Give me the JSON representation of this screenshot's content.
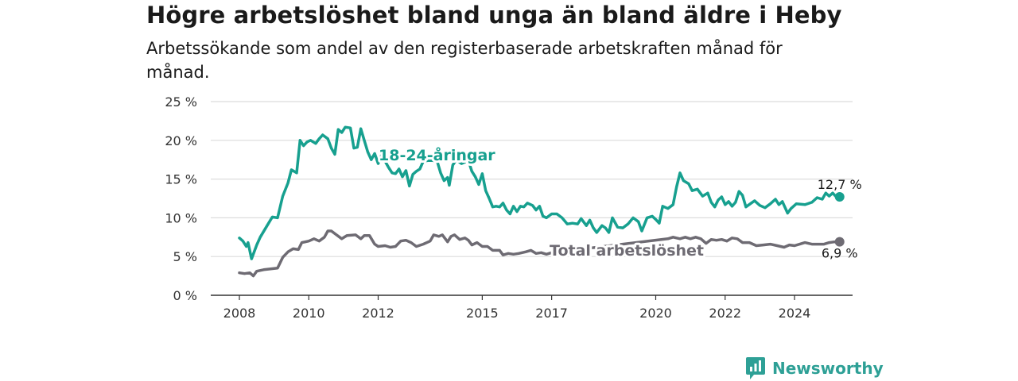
{
  "title": "Högre arbetslöshet bland unga än bland äldre i Heby",
  "subtitle": "Arbetssökande som andel av den registerbaserade arbetskraften månad för månad.",
  "brand": {
    "name": "Newsworthy",
    "logo_icon": "bar-chart-speech-bubble-icon"
  },
  "colors": {
    "youth": "#17a08f",
    "total": "#6e6b73",
    "brand": "#2ea096"
  },
  "chart_data": {
    "type": "line",
    "ylim": [
      0,
      25
    ],
    "xlim": [
      2007.7,
      2025.6
    ],
    "y_ticks": [
      0,
      5,
      10,
      15,
      20,
      25
    ],
    "y_tick_labels": [
      "0 %",
      "5 %",
      "10 %",
      "15 %",
      "20 %",
      "25 %"
    ],
    "x_ticks": [
      2008,
      2010,
      2012,
      2015,
      2017,
      2020,
      2022,
      2024
    ],
    "x_tick_labels": [
      "2008",
      "2010",
      "2012",
      "2015",
      "2017",
      "2020",
      "2022",
      "2024"
    ],
    "grid": true,
    "series": [
      {
        "name": "18-24-åringar",
        "end_label": "12,7 %",
        "points": [
          [
            2008.0,
            7.4
          ],
          [
            2008.1,
            7.0
          ],
          [
            2008.2,
            6.3
          ],
          [
            2008.25,
            6.8
          ],
          [
            2008.35,
            4.7
          ],
          [
            2008.5,
            6.5
          ],
          [
            2008.6,
            7.5
          ],
          [
            2008.8,
            9.0
          ],
          [
            2008.95,
            10.1
          ],
          [
            2009.1,
            10.0
          ],
          [
            2009.25,
            12.8
          ],
          [
            2009.4,
            14.5
          ],
          [
            2009.5,
            16.2
          ],
          [
            2009.65,
            15.8
          ],
          [
            2009.75,
            20.0
          ],
          [
            2009.85,
            19.3
          ],
          [
            2009.95,
            19.8
          ],
          [
            2010.05,
            20.0
          ],
          [
            2010.2,
            19.6
          ],
          [
            2010.3,
            20.2
          ],
          [
            2010.4,
            20.7
          ],
          [
            2010.55,
            20.2
          ],
          [
            2010.65,
            19.0
          ],
          [
            2010.75,
            18.2
          ],
          [
            2010.85,
            21.4
          ],
          [
            2010.95,
            21.0
          ],
          [
            2011.05,
            21.7
          ],
          [
            2011.2,
            21.6
          ],
          [
            2011.3,
            19.0
          ],
          [
            2011.4,
            19.1
          ],
          [
            2011.5,
            21.5
          ],
          [
            2011.6,
            20.0
          ],
          [
            2011.7,
            18.5
          ],
          [
            2011.8,
            17.5
          ],
          [
            2011.9,
            18.3
          ],
          [
            2012.0,
            17.0
          ],
          [
            2012.1,
            18.1
          ],
          [
            2012.2,
            17.3
          ],
          [
            2012.3,
            16.5
          ],
          [
            2012.4,
            15.8
          ],
          [
            2012.5,
            15.7
          ],
          [
            2012.6,
            16.3
          ],
          [
            2012.7,
            15.3
          ],
          [
            2012.8,
            16.1
          ],
          [
            2012.9,
            14.1
          ],
          [
            2013.0,
            15.6
          ],
          [
            2013.1,
            16.0
          ],
          [
            2013.2,
            16.3
          ],
          [
            2013.3,
            17.3
          ],
          [
            2013.45,
            17.4
          ],
          [
            2013.55,
            17.4
          ],
          [
            2013.7,
            17.3
          ],
          [
            2013.8,
            15.8
          ],
          [
            2013.9,
            14.8
          ],
          [
            2014.0,
            15.2
          ],
          [
            2014.05,
            14.2
          ],
          [
            2014.15,
            16.8
          ],
          [
            2014.25,
            17.5
          ],
          [
            2014.4,
            17.0
          ],
          [
            2014.5,
            17.2
          ],
          [
            2014.6,
            17.4
          ],
          [
            2014.7,
            16.0
          ],
          [
            2014.8,
            15.3
          ],
          [
            2014.9,
            14.3
          ],
          [
            2015.0,
            15.7
          ],
          [
            2015.1,
            13.5
          ],
          [
            2015.2,
            12.5
          ],
          [
            2015.3,
            11.4
          ],
          [
            2015.4,
            11.5
          ],
          [
            2015.5,
            11.4
          ],
          [
            2015.6,
            11.9
          ],
          [
            2015.7,
            11.0
          ],
          [
            2015.8,
            10.5
          ],
          [
            2015.9,
            11.5
          ],
          [
            2016.0,
            10.8
          ],
          [
            2016.1,
            11.5
          ],
          [
            2016.2,
            11.4
          ],
          [
            2016.3,
            11.9
          ],
          [
            2016.45,
            11.6
          ],
          [
            2016.55,
            11.0
          ],
          [
            2016.65,
            11.5
          ],
          [
            2016.75,
            10.2
          ],
          [
            2016.85,
            10.0
          ],
          [
            2017.0,
            10.5
          ],
          [
            2017.15,
            10.5
          ],
          [
            2017.3,
            10.0
          ],
          [
            2017.45,
            9.2
          ],
          [
            2017.6,
            9.3
          ],
          [
            2017.75,
            9.2
          ],
          [
            2017.85,
            9.9
          ],
          [
            2018.0,
            9.0
          ],
          [
            2018.1,
            9.7
          ],
          [
            2018.2,
            8.7
          ],
          [
            2018.3,
            8.1
          ],
          [
            2018.45,
            9.0
          ],
          [
            2018.55,
            8.7
          ],
          [
            2018.65,
            8.1
          ],
          [
            2018.75,
            10.0
          ],
          [
            2018.9,
            8.8
          ],
          [
            2019.05,
            8.7
          ],
          [
            2019.2,
            9.2
          ],
          [
            2019.35,
            10.0
          ],
          [
            2019.5,
            9.5
          ],
          [
            2019.6,
            8.3
          ],
          [
            2019.75,
            10.0
          ],
          [
            2019.9,
            10.2
          ],
          [
            2020.0,
            9.8
          ],
          [
            2020.1,
            9.3
          ],
          [
            2020.2,
            11.5
          ],
          [
            2020.35,
            11.2
          ],
          [
            2020.5,
            11.7
          ],
          [
            2020.6,
            14.0
          ],
          [
            2020.7,
            15.8
          ],
          [
            2020.8,
            14.8
          ],
          [
            2020.95,
            14.4
          ],
          [
            2021.05,
            13.5
          ],
          [
            2021.2,
            13.7
          ],
          [
            2021.35,
            12.8
          ],
          [
            2021.5,
            13.2
          ],
          [
            2021.6,
            12.0
          ],
          [
            2021.7,
            11.4
          ],
          [
            2021.8,
            12.3
          ],
          [
            2021.9,
            12.7
          ],
          [
            2022.0,
            11.7
          ],
          [
            2022.1,
            12.1
          ],
          [
            2022.2,
            11.5
          ],
          [
            2022.3,
            12.0
          ],
          [
            2022.4,
            13.4
          ],
          [
            2022.5,
            12.9
          ],
          [
            2022.6,
            11.4
          ],
          [
            2022.75,
            11.9
          ],
          [
            2022.85,
            12.2
          ],
          [
            2023.0,
            11.6
          ],
          [
            2023.15,
            11.3
          ],
          [
            2023.3,
            11.8
          ],
          [
            2023.45,
            12.4
          ],
          [
            2023.55,
            11.7
          ],
          [
            2023.65,
            12.1
          ],
          [
            2023.8,
            10.6
          ],
          [
            2023.9,
            11.2
          ],
          [
            2024.05,
            11.8
          ],
          [
            2024.3,
            11.7
          ],
          [
            2024.5,
            12.0
          ],
          [
            2024.65,
            12.6
          ],
          [
            2024.8,
            12.4
          ],
          [
            2024.9,
            13.2
          ],
          [
            2025.0,
            12.8
          ],
          [
            2025.1,
            13.2
          ],
          [
            2025.2,
            12.7
          ],
          [
            2025.3,
            12.7
          ]
        ]
      },
      {
        "name": "Total arbetslöshet",
        "end_label": "6,9 %",
        "points": [
          [
            2008.0,
            2.9
          ],
          [
            2008.15,
            2.8
          ],
          [
            2008.3,
            2.9
          ],
          [
            2008.4,
            2.5
          ],
          [
            2008.5,
            3.1
          ],
          [
            2008.7,
            3.3
          ],
          [
            2008.9,
            3.4
          ],
          [
            2009.1,
            3.5
          ],
          [
            2009.25,
            4.9
          ],
          [
            2009.4,
            5.6
          ],
          [
            2009.55,
            6.0
          ],
          [
            2009.7,
            5.9
          ],
          [
            2009.8,
            6.8
          ],
          [
            2010.0,
            7.0
          ],
          [
            2010.15,
            7.3
          ],
          [
            2010.3,
            7.0
          ],
          [
            2010.45,
            7.5
          ],
          [
            2010.55,
            8.3
          ],
          [
            2010.65,
            8.3
          ],
          [
            2010.8,
            7.8
          ],
          [
            2010.95,
            7.3
          ],
          [
            2011.1,
            7.7
          ],
          [
            2011.35,
            7.8
          ],
          [
            2011.5,
            7.3
          ],
          [
            2011.6,
            7.7
          ],
          [
            2011.75,
            7.7
          ],
          [
            2011.9,
            6.6
          ],
          [
            2012.0,
            6.3
          ],
          [
            2012.2,
            6.4
          ],
          [
            2012.35,
            6.2
          ],
          [
            2012.5,
            6.3
          ],
          [
            2012.65,
            7.0
          ],
          [
            2012.8,
            7.1
          ],
          [
            2012.95,
            6.8
          ],
          [
            2013.1,
            6.3
          ],
          [
            2013.3,
            6.6
          ],
          [
            2013.5,
            7.0
          ],
          [
            2013.6,
            7.8
          ],
          [
            2013.75,
            7.6
          ],
          [
            2013.85,
            7.8
          ],
          [
            2014.0,
            6.9
          ],
          [
            2014.1,
            7.6
          ],
          [
            2014.2,
            7.8
          ],
          [
            2014.35,
            7.2
          ],
          [
            2014.5,
            7.4
          ],
          [
            2014.6,
            7.1
          ],
          [
            2014.7,
            6.5
          ],
          [
            2014.85,
            6.8
          ],
          [
            2015.0,
            6.3
          ],
          [
            2015.15,
            6.3
          ],
          [
            2015.3,
            5.8
          ],
          [
            2015.5,
            5.8
          ],
          [
            2015.6,
            5.2
          ],
          [
            2015.75,
            5.4
          ],
          [
            2015.9,
            5.3
          ],
          [
            2016.05,
            5.4
          ],
          [
            2016.25,
            5.6
          ],
          [
            2016.4,
            5.8
          ],
          [
            2016.55,
            5.4
          ],
          [
            2016.7,
            5.5
          ],
          [
            2016.85,
            5.3
          ],
          [
            2017.0,
            5.5
          ],
          [
            2020.35,
            7.3
          ],
          [
            2020.5,
            7.5
          ],
          [
            2020.7,
            7.3
          ],
          [
            2020.85,
            7.5
          ],
          [
            2021.0,
            7.3
          ],
          [
            2021.15,
            7.5
          ],
          [
            2021.3,
            7.3
          ],
          [
            2021.45,
            6.7
          ],
          [
            2021.6,
            7.2
          ],
          [
            2021.75,
            7.1
          ],
          [
            2021.9,
            7.2
          ],
          [
            2022.05,
            7.0
          ],
          [
            2022.2,
            7.4
          ],
          [
            2022.35,
            7.3
          ],
          [
            2022.5,
            6.8
          ],
          [
            2022.7,
            6.8
          ],
          [
            2022.9,
            6.4
          ],
          [
            2023.1,
            6.5
          ],
          [
            2023.3,
            6.6
          ],
          [
            2023.5,
            6.4
          ],
          [
            2023.7,
            6.2
          ],
          [
            2023.85,
            6.5
          ],
          [
            2024.0,
            6.4
          ],
          [
            2024.15,
            6.6
          ],
          [
            2024.3,
            6.8
          ],
          [
            2024.5,
            6.6
          ],
          [
            2024.7,
            6.6
          ],
          [
            2024.85,
            6.6
          ],
          [
            2025.0,
            6.8
          ],
          [
            2025.15,
            6.9
          ],
          [
            2025.3,
            6.9
          ]
        ]
      }
    ]
  }
}
